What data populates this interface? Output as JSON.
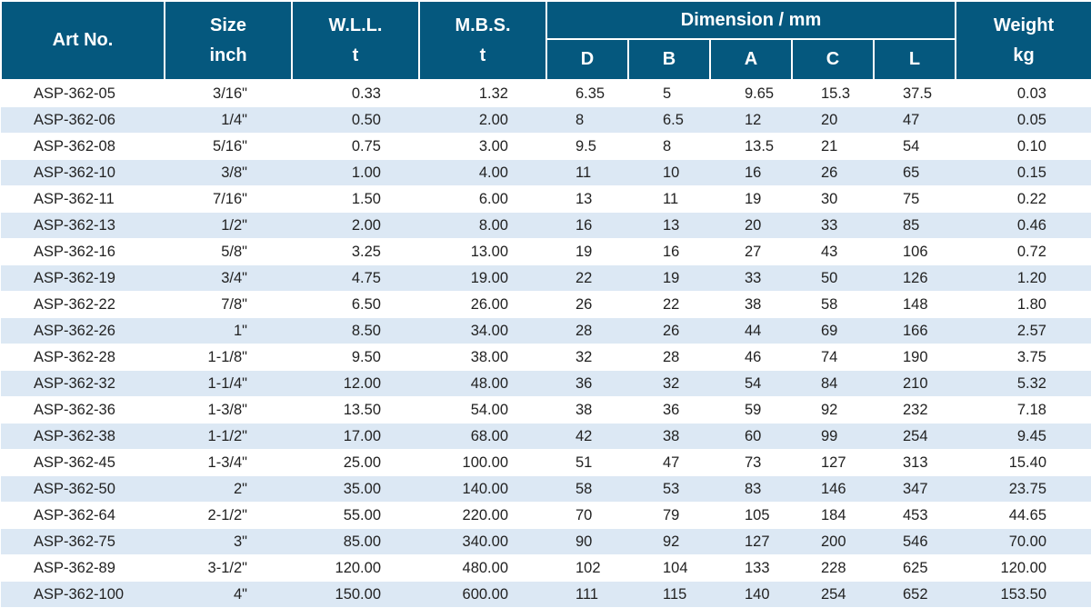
{
  "header": {
    "art_no": "Art No.",
    "size": [
      "Size",
      "inch"
    ],
    "wll": [
      "W.L.L.",
      "t"
    ],
    "mbs": [
      "M.B.S.",
      "t"
    ],
    "dimension": "Dimension / mm",
    "dim_cols": [
      "D",
      "B",
      "A",
      "C",
      "L"
    ],
    "weight": [
      "Weight",
      "kg"
    ]
  },
  "rows": [
    [
      "ASP-362-05",
      "3/16\"",
      "0.33",
      "1.32",
      "6.35",
      "5",
      "9.65",
      "15.3",
      "37.5",
      "0.03"
    ],
    [
      "ASP-362-06",
      "1/4\"",
      "0.50",
      "2.00",
      "8",
      "6.5",
      "12",
      "20",
      "47",
      "0.05"
    ],
    [
      "ASP-362-08",
      "5/16\"",
      "0.75",
      "3.00",
      "9.5",
      "8",
      "13.5",
      "21",
      "54",
      "0.10"
    ],
    [
      "ASP-362-10",
      "3/8\"",
      "1.00",
      "4.00",
      "11",
      "10",
      "16",
      "26",
      "65",
      "0.15"
    ],
    [
      "ASP-362-11",
      "7/16\"",
      "1.50",
      "6.00",
      "13",
      "11",
      "19",
      "30",
      "75",
      "0.22"
    ],
    [
      "ASP-362-13",
      "1/2\"",
      "2.00",
      "8.00",
      "16",
      "13",
      "20",
      "33",
      "85",
      "0.46"
    ],
    [
      "ASP-362-16",
      "5/8\"",
      "3.25",
      "13.00",
      "19",
      "16",
      "27",
      "43",
      "106",
      "0.72"
    ],
    [
      "ASP-362-19",
      "3/4\"",
      "4.75",
      "19.00",
      "22",
      "19",
      "33",
      "50",
      "126",
      "1.20"
    ],
    [
      "ASP-362-22",
      "7/8\"",
      "6.50",
      "26.00",
      "26",
      "22",
      "38",
      "58",
      "148",
      "1.80"
    ],
    [
      "ASP-362-26",
      "1\"",
      "8.50",
      "34.00",
      "28",
      "26",
      "44",
      "69",
      "166",
      "2.57"
    ],
    [
      "ASP-362-28",
      "1-1/8\"",
      "9.50",
      "38.00",
      "32",
      "28",
      "46",
      "74",
      "190",
      "3.75"
    ],
    [
      "ASP-362-32",
      "1-1/4\"",
      "12.00",
      "48.00",
      "36",
      "32",
      "54",
      "84",
      "210",
      "5.32"
    ],
    [
      "ASP-362-36",
      "1-3/8\"",
      "13.50",
      "54.00",
      "38",
      "36",
      "59",
      "92",
      "232",
      "7.18"
    ],
    [
      "ASP-362-38",
      "1-1/2\"",
      "17.00",
      "68.00",
      "42",
      "38",
      "60",
      "99",
      "254",
      "9.45"
    ],
    [
      "ASP-362-45",
      "1-3/4\"",
      "25.00",
      "100.00",
      "51",
      "47",
      "73",
      "127",
      "313",
      "15.40"
    ],
    [
      "ASP-362-50",
      "2\"",
      "35.00",
      "140.00",
      "58",
      "53",
      "83",
      "146",
      "347",
      "23.75"
    ],
    [
      "ASP-362-64",
      "2-1/2\"",
      "55.00",
      "220.00",
      "70",
      "79",
      "105",
      "184",
      "453",
      "44.65"
    ],
    [
      "ASP-362-75",
      "3\"",
      "85.00",
      "340.00",
      "90",
      "92",
      "127",
      "200",
      "546",
      "70.00"
    ],
    [
      "ASP-362-89",
      "3-1/2\"",
      "120.00",
      "480.00",
      "102",
      "104",
      "133",
      "228",
      "625",
      "120.00"
    ],
    [
      "ASP-362-100",
      "4\"",
      "150.00",
      "600.00",
      "111",
      "115",
      "140",
      "254",
      "652",
      "153.50"
    ]
  ]
}
